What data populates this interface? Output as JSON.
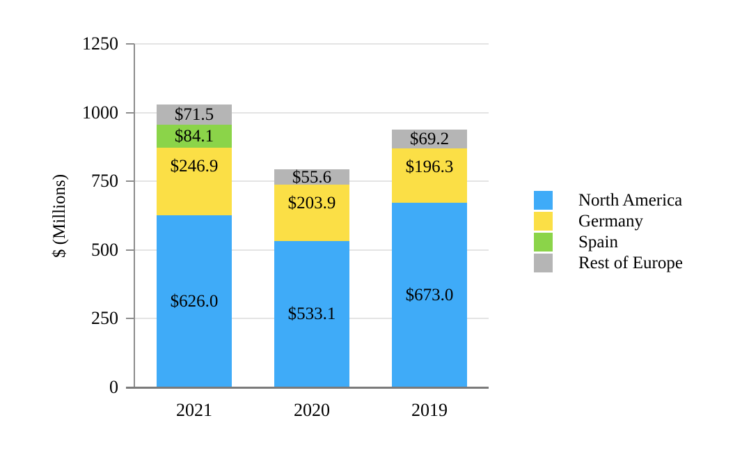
{
  "chart_data": {
    "type": "bar",
    "stacked": true,
    "categories": [
      "2021",
      "2020",
      "2019"
    ],
    "series": [
      {
        "name": "North America",
        "color": "#3FABF8",
        "values": [
          626.0,
          533.1,
          673.0
        ],
        "labels": [
          "$626.0",
          "$533.1",
          "$673.0"
        ]
      },
      {
        "name": "Germany",
        "color": "#FBDF46",
        "values": [
          246.9,
          203.9,
          196.3
        ],
        "labels": [
          "$246.9",
          "$203.9",
          "$196.3"
        ]
      },
      {
        "name": "Spain",
        "color": "#8BD449",
        "values": [
          84.1,
          null,
          null
        ],
        "labels": [
          "$84.1",
          null,
          null
        ]
      },
      {
        "name": "Rest of Europe",
        "color": "#B5B5B5",
        "values": [
          71.5,
          55.6,
          69.2
        ],
        "labels": [
          "$71.5",
          "$55.6",
          "$69.2"
        ]
      }
    ],
    "title": "",
    "xlabel": "",
    "ylabel": "$ (Millions)",
    "ylim": [
      0,
      1250
    ],
    "yticks": [
      0,
      250,
      500,
      750,
      1000,
      1250
    ],
    "grid": true,
    "legend_position": "right",
    "axis_color": "#8C8C8C",
    "baseline_color": "#7A7A7A",
    "gridline_color": "#E4E4E4"
  }
}
